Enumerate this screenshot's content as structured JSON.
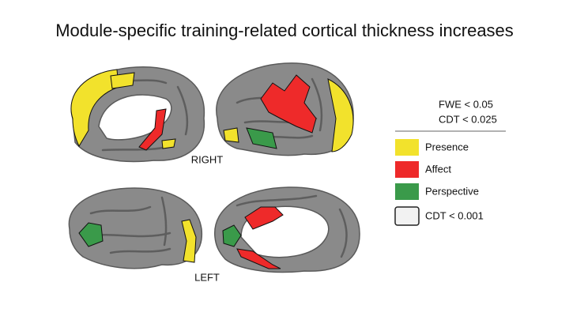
{
  "title": "Module-specific training-related cortical thickness increases",
  "panels": [
    {
      "label": "RIGHT"
    },
    {
      "label": "LEFT"
    }
  ],
  "legend": {
    "header": [
      "FWE < 0.05",
      "CDT < 0.025"
    ],
    "items": [
      {
        "label": "Presence",
        "color": "#f2e22c"
      },
      {
        "label": "Affect",
        "color": "#ee2a2a"
      },
      {
        "label": "Perspective",
        "color": "#3a9a4a"
      }
    ],
    "threshold": {
      "label": "CDT < 0.001",
      "color": "#f2f2f2"
    }
  }
}
